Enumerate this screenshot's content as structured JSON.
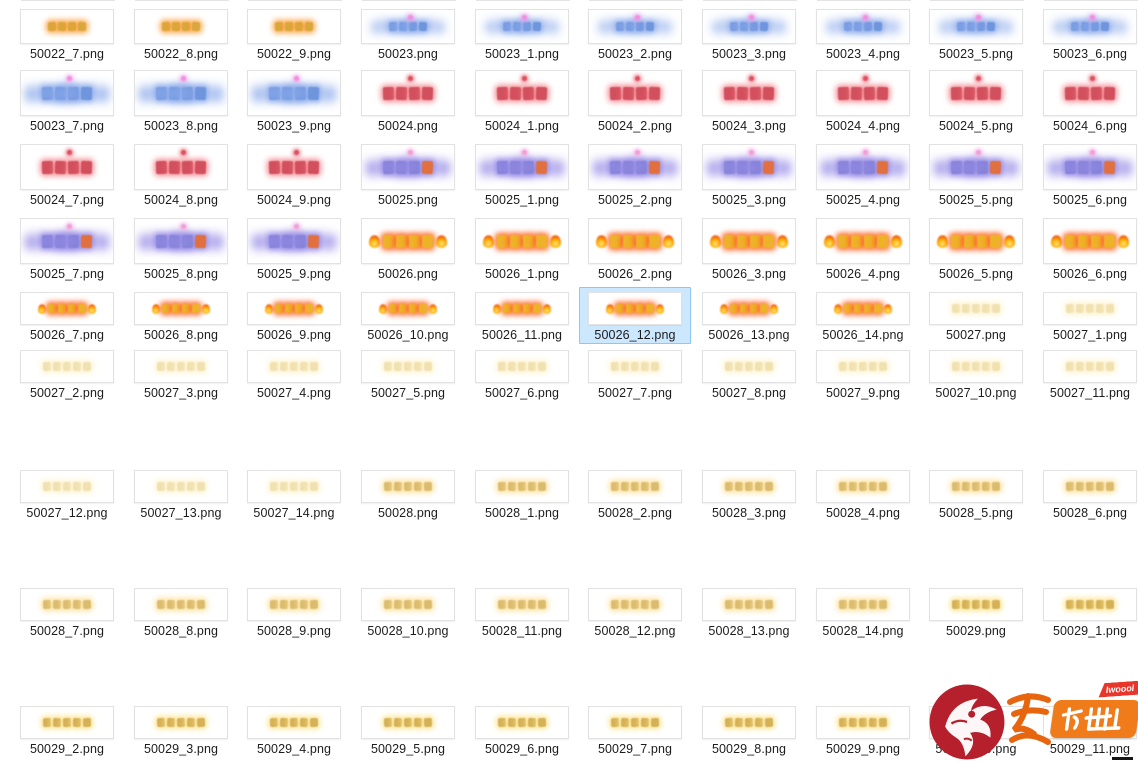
{
  "app": {
    "kind": "file-explorer-thumbnail-grid",
    "background": "#ffffff",
    "file_extension": ".png"
  },
  "selection": {
    "file": "50026_12.png",
    "fill": "#cce8ff",
    "border": "#8fc7f2"
  },
  "grid": {
    "columns": 10,
    "rows": [
      [
        "50022_7.png",
        "50022_8.png",
        "50022_9.png",
        "50023.png",
        "50023_1.png",
        "50023_2.png",
        "50023_3.png",
        "50023_4.png",
        "50023_5.png",
        "50023_6.png"
      ],
      [
        "50023_7.png",
        "50023_8.png",
        "50023_9.png",
        "50024.png",
        "50024_1.png",
        "50024_2.png",
        "50024_3.png",
        "50024_4.png",
        "50024_5.png",
        "50024_6.png"
      ],
      [
        "50024_7.png",
        "50024_8.png",
        "50024_9.png",
        "50025.png",
        "50025_1.png",
        "50025_2.png",
        "50025_3.png",
        "50025_4.png",
        "50025_5.png",
        "50025_6.png"
      ],
      [
        "50025_7.png",
        "50025_8.png",
        "50025_9.png",
        "50026.png",
        "50026_1.png",
        "50026_2.png",
        "50026_3.png",
        "50026_4.png",
        "50026_5.png",
        "50026_6.png"
      ],
      [
        "50026_7.png",
        "50026_8.png",
        "50026_9.png",
        "50026_10.png",
        "50026_11.png",
        "50026_12.png",
        "50026_13.png",
        "50026_14.png",
        "50027.png",
        "50027_1.png"
      ],
      [
        "50027_2.png",
        "50027_3.png",
        "50027_4.png",
        "50027_5.png",
        "50027_6.png",
        "50027_7.png",
        "50027_8.png",
        "50027_9.png",
        "50027_10.png",
        "50027_11.png"
      ],
      [
        "50027_12.png",
        "50027_13.png",
        "50027_14.png",
        "50028.png",
        "50028_1.png",
        "50028_2.png",
        "50028_3.png",
        "50028_4.png",
        "50028_5.png",
        "50028_6.png"
      ],
      [
        "50028_7.png",
        "50028_8.png",
        "50028_9.png",
        "50028_10.png",
        "50028_11.png",
        "50028_12.png",
        "50028_13.png",
        "50028_14.png",
        "50029.png",
        "50029_1.png"
      ],
      [
        "50029_2.png",
        "50029_3.png",
        "50029_4.png",
        "50029_5.png",
        "50029_6.png",
        "50029_7.png",
        "50029_8.png",
        "50029_9.png",
        "50029_10.png",
        "50029_11.png"
      ]
    ]
  },
  "thumbnails": {
    "50022": {
      "approx_text": "缘定人生",
      "glyph_count": 4,
      "color": "#d8a83c",
      "glow": "rgba(255,150,40,0.9)",
      "opacity": 1,
      "accent": null,
      "streaks": false,
      "flames": false,
      "last_color": null
    },
    "50023": {
      "approx_text": "狂暴之王",
      "glyph_count": 4,
      "color": "#6f95dd",
      "glow": "rgba(140,170,235,0.85)",
      "opacity": 1,
      "accent": "#f090e0",
      "streaks": true,
      "flames": false,
      "last_color": null
    },
    "50024": {
      "approx_text": "情定三生",
      "glyph_count": 4,
      "color": "#d2505e",
      "glow": "rgba(240,110,120,0.8)",
      "opacity": 1,
      "accent": "#e05060",
      "streaks": false,
      "flames": false,
      "last_color": null
    },
    "50025": {
      "approx_text": "笑傲天下",
      "glyph_count": 4,
      "color": "#7d7fd2",
      "glow": "rgba(150,140,230,0.85)",
      "opacity": 1,
      "accent": "#f0a0d8",
      "streaks": true,
      "flames": false,
      "last_color": "#e07040"
    },
    "50026": {
      "approx_text": "经典传奇",
      "glyph_count": 4,
      "color": "#eeb229",
      "glow": "rgba(255,90,20,0.95)",
      "opacity": 1,
      "accent": null,
      "streaks": false,
      "flames": true,
      "last_color": null
    },
    "50027": {
      "approx_text": "天下第一宠",
      "glyph_count": 5,
      "color": "#e3c465",
      "glow": "rgba(255,230,150,0.9)",
      "opacity": 0.5,
      "accent": null,
      "streaks": false,
      "flames": false,
      "last_color": null
    },
    "50028": {
      "approx_text": "天下第一帮",
      "glyph_count": 5,
      "color": "#cfa63f",
      "glow": "rgba(255,215,120,0.95)",
      "opacity": 0.75,
      "accent": null,
      "streaks": false,
      "flames": false,
      "last_color": null
    },
    "50029": {
      "approx_text": "天下第一庄",
      "glyph_count": 5,
      "color": "#cfa63f",
      "glow": "rgba(255,225,130,1)",
      "opacity": 0.88,
      "accent": null,
      "streaks": false,
      "flames": false,
      "last_color": null
    }
  },
  "watermark": {
    "ai_char": "爱",
    "brand_chars": "传世",
    "ribbon_text": "Iwoool",
    "colors": {
      "dragon_red": "#b5202c",
      "orange": "#ef7b1a",
      "ribbon_red": "#e8362a",
      "white": "#ffffff"
    }
  }
}
